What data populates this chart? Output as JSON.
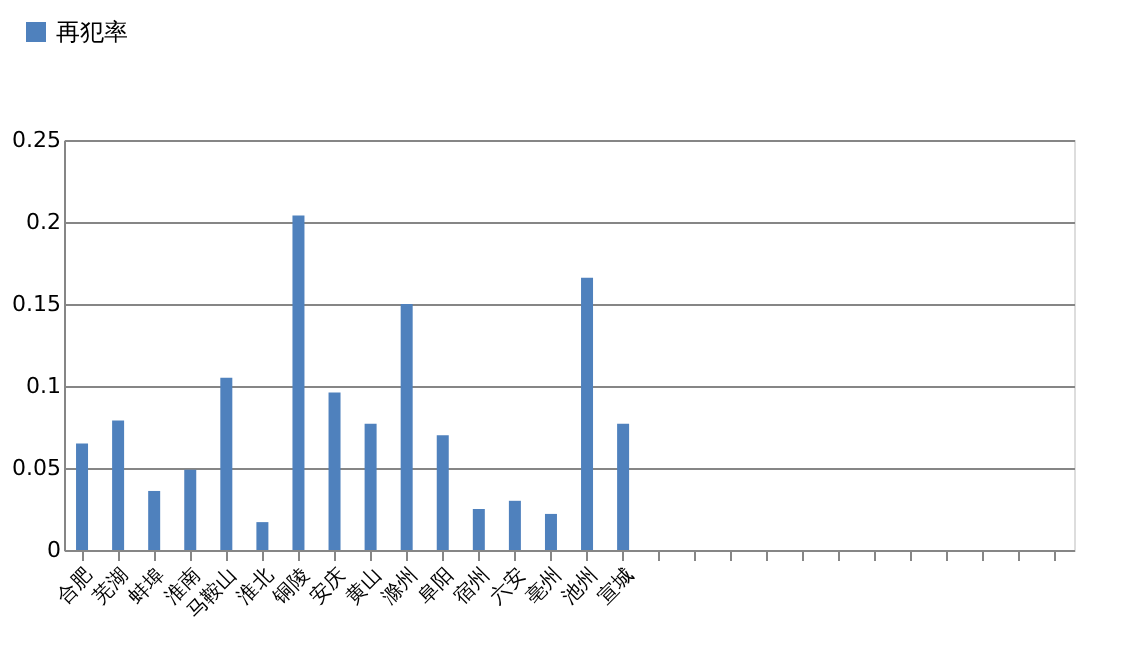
{
  "chart_data": {
    "type": "bar",
    "categories": [
      "合肥",
      "芜湖",
      "蚌埠",
      "淮南",
      "马鞍山",
      "淮北",
      "铜陵",
      "安庆",
      "黄山",
      "滁州",
      "阜阳",
      "宿州",
      "六安",
      "亳州",
      "池州",
      "宣城",
      null,
      null,
      null,
      null,
      null,
      null,
      null,
      null,
      null,
      null,
      null,
      null
    ],
    "series": [
      {
        "name": "再犯率",
        "color": "#4f81bd",
        "values": [
          0.065,
          0.079,
          0.036,
          0.049,
          0.105,
          0.017,
          0.204,
          0.096,
          0.077,
          0.15,
          0.07,
          0.025,
          0.03,
          0.022,
          0.166,
          0.077,
          null,
          null,
          null,
          null,
          null,
          null,
          null,
          null,
          null,
          null,
          null,
          null
        ]
      }
    ],
    "ylim": [
      0,
      0.25
    ],
    "yticks": [
      0,
      0.05,
      0.1,
      0.15,
      0.2,
      0.25
    ],
    "grid": "y",
    "legend": "top left"
  }
}
